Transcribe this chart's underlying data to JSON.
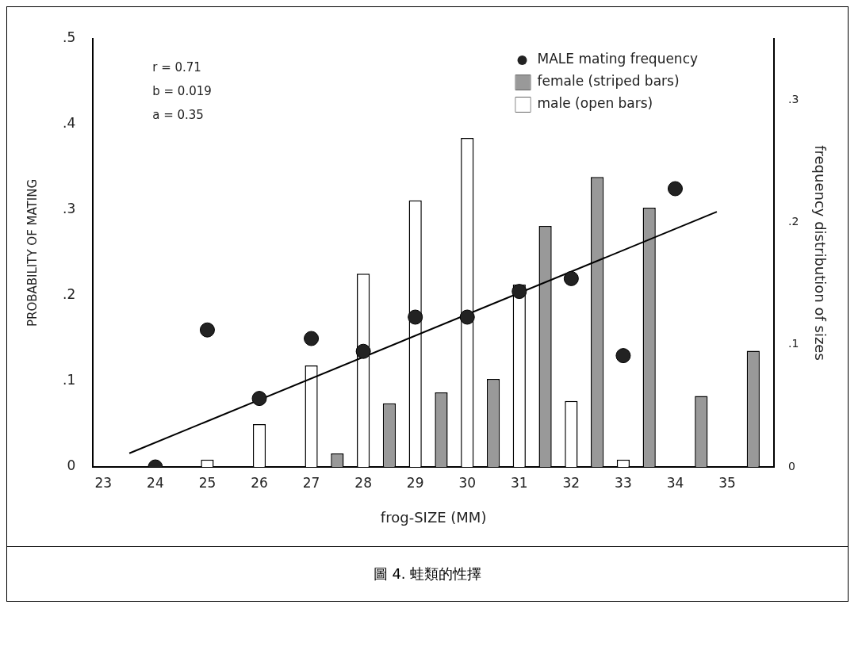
{
  "chart_data": {
    "type": "bar",
    "xlabel": "frog-SIZE (MM)",
    "ylabel": "PROBABILITY OF MATING",
    "y2label": "frequency distribution of sizes",
    "xlim": [
      22.8,
      35.9
    ],
    "xticks": [
      23,
      24,
      25,
      26,
      27,
      28,
      29,
      30,
      31,
      32,
      33,
      34,
      35
    ],
    "ylim": [
      0,
      0.5
    ],
    "yticks": [
      {
        "value": 0,
        "label": "0"
      },
      {
        "value": 0.1,
        "label": ".1"
      },
      {
        "value": 0.2,
        "label": ".2"
      },
      {
        "value": 0.3,
        "label": ".3"
      },
      {
        "value": 0.4,
        "label": ".4"
      },
      {
        "value": 0.5,
        "label": ".5"
      }
    ],
    "y2lim": [
      0,
      0.35
    ],
    "y2ticks": [
      {
        "value": 0,
        "label": "0"
      },
      {
        "value": 0.1,
        "label": ".1"
      },
      {
        "value": 0.2,
        "label": ".2"
      },
      {
        "value": 0.3,
        "label": ".3"
      }
    ],
    "grid": false,
    "legend": "top right",
    "annotations": [
      "r = 0.71",
      "b = 0.019",
      "a = 0.35",
      "圖 4. 蛙類的性擇"
    ],
    "series": [
      {
        "name": "MALE mating frequency",
        "type": "scatter",
        "marker": "circle",
        "color": "#222222",
        "x": [
          24,
          25,
          26,
          27,
          28,
          29,
          30,
          31,
          32,
          33,
          34
        ],
        "values": [
          0,
          0.16,
          0.08,
          0.15,
          0.135,
          0.175,
          0.175,
          0.205,
          0.22,
          0.13,
          0.325
        ]
      },
      {
        "type": "line",
        "color": "#000000",
        "x": [
          23.5,
          34.8
        ],
        "values": [
          0.016,
          0.298
        ]
      },
      {
        "name": "female (striped bars)",
        "axis": "y2",
        "color": "#999999",
        "x": [
          27.5,
          28.5,
          29.5,
          30.5,
          31.5,
          32.5,
          33.5,
          34.5,
          35.5
        ],
        "values": [
          0.011,
          0.052,
          0.061,
          0.072,
          0.197,
          0.237,
          0.212,
          0.058,
          0.095
        ]
      },
      {
        "name": "male (open bars)",
        "axis": "y2",
        "color": "#ffffff",
        "x": [
          25,
          26,
          27,
          28,
          29,
          30,
          31,
          32,
          33
        ],
        "values": [
          0.006,
          0.035,
          0.083,
          0.158,
          0.218,
          0.269,
          0.149,
          0.054,
          0.006
        ]
      }
    ]
  }
}
